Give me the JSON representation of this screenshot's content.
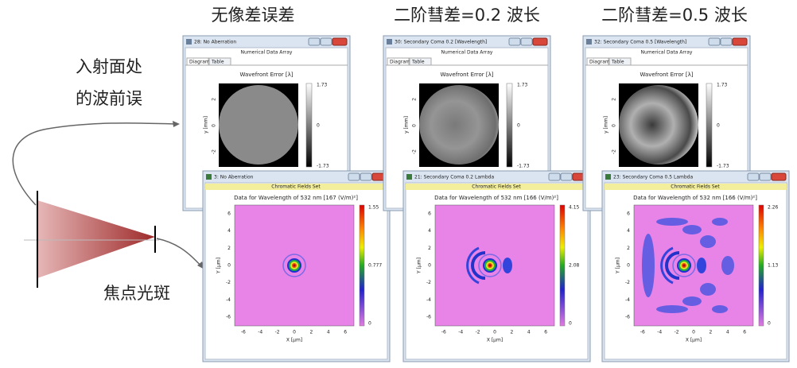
{
  "labels": {
    "wavefront": [
      "入射面处",
      "的波前误"
    ],
    "focus": "焦点光斑"
  },
  "columns": [
    {
      "heading": "无像差误差",
      "wavefront_window": {
        "title": "28: No Aberration",
        "subtitle": "Numerical Data Array",
        "tabs": [
          "Diagram",
          "Table"
        ],
        "plot_title": "Wavefront Error [λ]",
        "y_label": "y [mm]",
        "y_ticks": [
          "2",
          "0",
          "-2"
        ],
        "colorbar": [
          "1.73",
          "0",
          "-1.73"
        ]
      },
      "field_window": {
        "title": "3: No Aberration",
        "subtitle": "Chromatic Fields Set",
        "plot_title": "Data for Wavelength of 532 nm  [167 (V/m)²]",
        "y_label": "Y [µm]",
        "x_label": "X [µm]",
        "y_ticks": [
          "6",
          "4",
          "2",
          "0",
          "-2",
          "-4",
          "-6"
        ],
        "x_ticks": [
          "-6",
          "-4",
          "-2",
          "0",
          "2",
          "4",
          "6"
        ],
        "colorbar": [
          "1.55",
          "0.777",
          "0"
        ]
      }
    },
    {
      "heading": "二阶彗差=0.2 波长",
      "wavefront_window": {
        "title": "30: Secondary Coma 0.2 [Wavelength]",
        "subtitle": "Numerical Data Array",
        "tabs": [
          "Diagram",
          "Table"
        ],
        "plot_title": "Wavefront Error [λ]",
        "y_label": "y [mm]",
        "y_ticks": [
          "2",
          "0",
          "-2"
        ],
        "colorbar": [
          "1.73",
          "0",
          "-1.73"
        ]
      },
      "field_window": {
        "title": "21: Secondary Coma 0.2 Lambda",
        "subtitle": "Chromatic Fields Set",
        "plot_title": "Data for Wavelength of 532 nm  [166 (V/m)²]",
        "y_label": "Y [µm]",
        "x_label": "X [µm]",
        "y_ticks": [
          "6",
          "4",
          "2",
          "0",
          "-2",
          "-4",
          "-6"
        ],
        "x_ticks": [
          "-6",
          "-4",
          "-2",
          "0",
          "2",
          "4",
          "6"
        ],
        "colorbar": [
          "4.15",
          "2.08",
          "0"
        ]
      }
    },
    {
      "heading": "二阶彗差=0.5 波长",
      "wavefront_window": {
        "title": "32: Secondary Coma 0.5 [Wavelength]",
        "subtitle": "Numerical Data Array",
        "tabs": [
          "Diagram",
          "Table"
        ],
        "plot_title": "Wavefront Error [λ]",
        "y_label": "y [mm]",
        "y_ticks": [
          "2",
          "0",
          "-2"
        ],
        "colorbar": [
          "1.73",
          "0",
          "-1.73"
        ]
      },
      "field_window": {
        "title": "23: Secondary Coma 0.5 Lambda",
        "subtitle": "Chromatic Fields Set",
        "plot_title": "Data for Wavelength of 532 nm  [166 (V/m)²]",
        "y_label": "Y [µm]",
        "x_label": "X [µm]",
        "y_ticks": [
          "6",
          "4",
          "2",
          "0",
          "-2",
          "-4",
          "-6"
        ],
        "x_ticks": [
          "-6",
          "-4",
          "-2",
          "0",
          "2",
          "4",
          "6"
        ],
        "colorbar": [
          "2.26",
          "1.13",
          "0"
        ]
      }
    }
  ]
}
